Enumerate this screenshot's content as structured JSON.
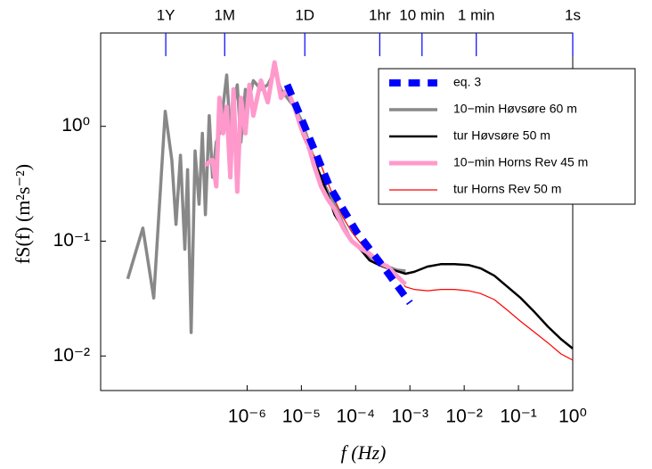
{
  "chart_data": {
    "type": "line",
    "x_label": "f  (Hz)",
    "y_label": "fS(f)  (m²s⁻²)",
    "xscale": "log",
    "yscale": "log",
    "legend": "upper right",
    "xlim": [
      2e-09,
      1
    ],
    "ylim": [
      0.005,
      6.5
    ],
    "xticks": [
      {
        "value": 1e-06,
        "label": "10⁻⁶"
      },
      {
        "value": 1e-05,
        "label": "10⁻⁵"
      },
      {
        "value": 0.0001,
        "label": "10⁻⁴"
      },
      {
        "value": 0.001,
        "label": "10⁻³"
      },
      {
        "value": 0.01,
        "label": "10⁻²"
      },
      {
        "value": 0.1,
        "label": "10⁻¹"
      },
      {
        "value": 1,
        "label": "10⁰"
      }
    ],
    "yticks": [
      {
        "value": 0.01,
        "label": "10⁻²"
      },
      {
        "value": 0.1,
        "label": "10⁻¹"
      },
      {
        "value": 1,
        "label": "10⁰"
      }
    ],
    "top_axis": {
      "color": "#0000ff",
      "ticks": [
        {
          "value": 3.17e-08,
          "label": "1Y"
        },
        {
          "value": 3.86e-07,
          "label": "1M"
        },
        {
          "value": 1.157e-05,
          "label": "1D"
        },
        {
          "value": 0.000278,
          "label": "1hr"
        },
        {
          "value": 0.00167,
          "label": "10 min"
        },
        {
          "value": 0.0167,
          "label": "1 min"
        },
        {
          "value": 1,
          "label": "1s"
        }
      ]
    },
    "series": [
      {
        "name": "eq. 3",
        "color": "#0000ff",
        "style": "dashed",
        "width": 8,
        "x": [
          5.5e-06,
          1.3e-05,
          3.3e-05,
          0.000105,
          0.00032,
          0.001
        ],
        "values": [
          2.3,
          0.87,
          0.3,
          0.12,
          0.06,
          0.029
        ]
      },
      {
        "name": "10−min Høvsøre 60 m",
        "color": "#888888",
        "style": "solid",
        "width": 3.5,
        "x": [
          6.3e-09,
          1.2e-08,
          1.9e-08,
          3.1e-08,
          4.1e-08,
          4.9e-08,
          5.9e-08,
          7.1e-08,
          8e-08,
          9.3e-08,
          1.1e-07,
          1.3e-07,
          1.5e-07,
          1.7e-07,
          2e-07,
          2.3e-07,
          2.7e-07,
          3.1e-07,
          3.6e-07,
          4.2e-07,
          4.9e-07,
          5.6e-07,
          6.6e-07,
          7.7e-07,
          9.3e-07,
          1.1e-06,
          1.3e-06,
          1.8e-06,
          2.4e-06,
          3.2e-06,
          4.2e-06,
          5.5e-06,
          7.4e-06,
          1e-05,
          1.3e-05,
          1.7e-05,
          2.3e-05,
          3.1e-05,
          4.1e-05,
          5.9e-05,
          8.5e-05,
          0.00013,
          0.00018,
          0.00027,
          0.00039,
          0.00057,
          0.00083
        ],
        "values": [
          0.047,
          0.13,
          0.032,
          1.35,
          0.51,
          0.14,
          0.56,
          0.085,
          0.42,
          0.016,
          0.61,
          0.21,
          0.87,
          0.17,
          1.24,
          0.36,
          0.73,
          0.87,
          1.48,
          2.8,
          0.87,
          1.48,
          2.3,
          0.73,
          2.1,
          1.77,
          2.5,
          2.1,
          2.3,
          3.0,
          2.1,
          1.77,
          1.48,
          1.13,
          0.79,
          0.51,
          0.36,
          0.27,
          0.21,
          0.14,
          0.1,
          0.085,
          0.071,
          0.065,
          0.06,
          0.056,
          0.055
        ]
      },
      {
        "name": "tur Høvsøre 50 m",
        "color": "#000000",
        "style": "solid",
        "width": 2.5,
        "x": [
          1.3e-05,
          1.7e-05,
          2.3e-05,
          3.1e-05,
          4.1e-05,
          5.9e-05,
          8.5e-05,
          0.00013,
          0.00018,
          0.00027,
          0.00039,
          0.00057,
          0.00083,
          0.0012,
          0.0021,
          0.0037,
          0.0066,
          0.012,
          0.02,
          0.036,
          0.063,
          0.11,
          0.2,
          0.35,
          0.61,
          1
        ],
        "values": [
          0.66,
          0.51,
          0.36,
          0.25,
          0.17,
          0.13,
          0.1,
          0.082,
          0.068,
          0.062,
          0.058,
          0.055,
          0.052,
          0.054,
          0.06,
          0.063,
          0.063,
          0.062,
          0.058,
          0.05,
          0.04,
          0.032,
          0.024,
          0.018,
          0.014,
          0.0116
        ]
      },
      {
        "name": "10−min Horns Rev 45 m",
        "color": "#ff99cc",
        "style": "solid",
        "width": 5,
        "x": [
          1.7e-07,
          2.3e-07,
          2.7e-07,
          3.1e-07,
          3.6e-07,
          4.2e-07,
          4.9e-07,
          5.6e-07,
          6.6e-07,
          7.7e-07,
          9.3e-07,
          1.1e-06,
          1.3e-06,
          1.8e-06,
          2.4e-06,
          3.2e-06,
          4.2e-06,
          5.5e-06,
          7.4e-06,
          1e-05,
          1.3e-05,
          1.7e-05,
          2.3e-05,
          3.1e-05,
          4.1e-05,
          5.9e-05,
          8.5e-05,
          0.00013,
          0.00018,
          0.00027,
          0.00039,
          0.00057,
          0.00083
        ],
        "values": [
          0.46,
          0.51,
          0.3,
          1.77,
          0.87,
          1.48,
          0.36,
          2.1,
          0.27,
          1.77,
          0.87,
          2.3,
          1.24,
          2.5,
          1.62,
          3.6,
          1.77,
          2.1,
          1.48,
          0.95,
          0.73,
          0.46,
          0.3,
          0.23,
          0.19,
          0.13,
          0.1,
          0.085,
          0.078,
          0.065,
          0.06,
          0.05,
          0.042
        ]
      },
      {
        "name": "tur Horns Rev 50 m",
        "color": "#ff0000",
        "style": "solid",
        "width": 1.2,
        "x": [
          1e-05,
          1.3e-05,
          1.7e-05,
          2.3e-05,
          3.1e-05,
          4.1e-05,
          5.9e-05,
          8.5e-05,
          0.00013,
          0.00018,
          0.00027,
          0.00039,
          0.00057,
          0.00083,
          0.0012,
          0.0021,
          0.0037,
          0.0066,
          0.012,
          0.02,
          0.036,
          0.063,
          0.11,
          0.2,
          0.35,
          0.61,
          1
        ],
        "values": [
          0.87,
          0.66,
          0.56,
          0.46,
          0.32,
          0.23,
          0.16,
          0.12,
          0.093,
          0.078,
          0.068,
          0.06,
          0.05,
          0.04,
          0.038,
          0.037,
          0.038,
          0.038,
          0.037,
          0.035,
          0.031,
          0.025,
          0.02,
          0.016,
          0.013,
          0.0104,
          0.0092
        ]
      }
    ]
  }
}
